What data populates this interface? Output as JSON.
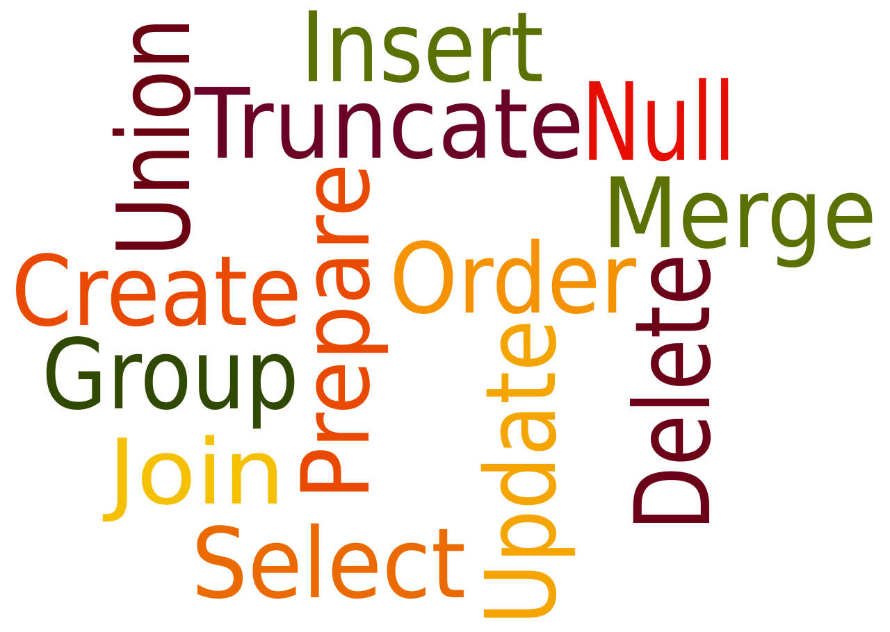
{
  "words": [
    {
      "id": "insert",
      "text": "Insert",
      "color": "#5a7000"
    },
    {
      "id": "truncate",
      "text": "Truncate",
      "color": "#6b0026"
    },
    {
      "id": "null",
      "text": "Null",
      "color": "#e60e00"
    },
    {
      "id": "union",
      "text": "Union",
      "color": "#6a0012"
    },
    {
      "id": "merge",
      "text": "Merge",
      "color": "#5a7000"
    },
    {
      "id": "create",
      "text": "Create",
      "color": "#ea4a00"
    },
    {
      "id": "prepare",
      "text": "Prepare",
      "color": "#ea4a00"
    },
    {
      "id": "order",
      "text": "Order",
      "color": "#f59200"
    },
    {
      "id": "delete",
      "text": "Delete",
      "color": "#6b0018"
    },
    {
      "id": "group",
      "text": "Group",
      "color": "#2f4a00"
    },
    {
      "id": "update",
      "text": "Update",
      "color": "#f5a500"
    },
    {
      "id": "join",
      "text": "Join",
      "color": "#f5c000"
    },
    {
      "id": "select",
      "text": "Select",
      "color": "#eb6a00"
    }
  ]
}
